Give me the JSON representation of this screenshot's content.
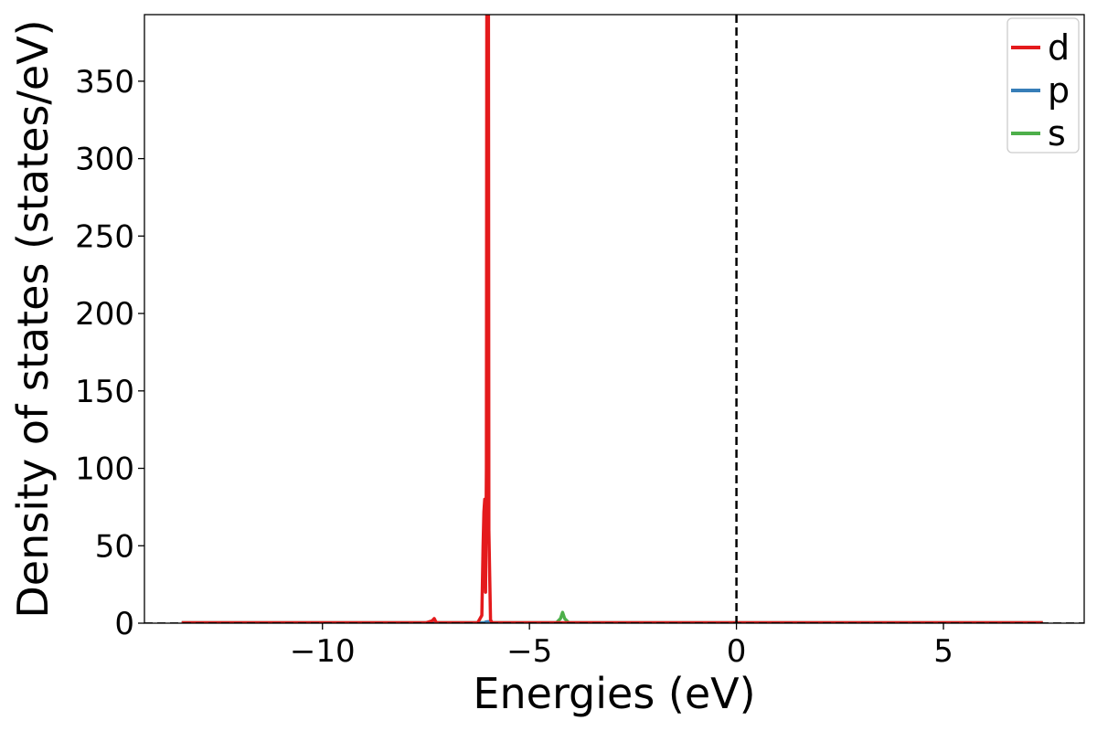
{
  "chart_data": {
    "type": "line",
    "title": "",
    "xlabel": "Energies (eV)",
    "ylabel": "Density of states (states/eV)",
    "xlim": [
      -14.3,
      8.4
    ],
    "ylim": [
      0,
      393
    ],
    "xticks": [
      -10,
      -5,
      0,
      5
    ],
    "xtick_labels": [
      "−10",
      "−5",
      "0",
      "5"
    ],
    "yticks": [
      0,
      50,
      100,
      150,
      200,
      250,
      300,
      350
    ],
    "ytick_labels": [
      "0",
      "50",
      "100",
      "150",
      "200",
      "250",
      "300",
      "350"
    ],
    "grid": false,
    "legend_position": "top-right",
    "vertical_reference_line": {
      "x": 0,
      "style": "dashed",
      "color": "#000000"
    },
    "horizontal_reference_line": {
      "y": 0,
      "style": "dashed",
      "color": "#000000"
    },
    "series": [
      {
        "name": "d",
        "color": "#e41a1c",
        "x": [
          -13.4,
          -7.5,
          -7.35,
          -7.3,
          -7.25,
          -6.25,
          -6.15,
          -6.12,
          -6.1,
          -6.08,
          -6.06,
          -6.04,
          -6.03,
          -6.02,
          -6.0,
          -5.99,
          -5.98,
          -5.96,
          -5.94,
          -5.9,
          -4.0,
          7.4
        ],
        "y": [
          0.3,
          0.3,
          1.5,
          3,
          0.3,
          0.3,
          5,
          50,
          72,
          80,
          20,
          100,
          393,
          393,
          393,
          393,
          60,
          30,
          2,
          0.3,
          0.3,
          0.3
        ]
      },
      {
        "name": "p",
        "color": "#377eb8",
        "x": [
          -13.4,
          -6.1,
          -6.05,
          -6.0,
          -5.95,
          7.4
        ],
        "y": [
          0.2,
          0.2,
          0.8,
          1.0,
          0.2,
          0.2
        ]
      },
      {
        "name": "s",
        "color": "#4daf4a",
        "x": [
          -13.4,
          -7.4,
          -7.3,
          -7.2,
          -4.35,
          -4.25,
          -4.2,
          -4.15,
          -4.05,
          7.4
        ],
        "y": [
          0.3,
          0.3,
          0.8,
          0.3,
          0.3,
          3,
          7,
          3,
          0.3,
          0.3
        ]
      }
    ]
  }
}
